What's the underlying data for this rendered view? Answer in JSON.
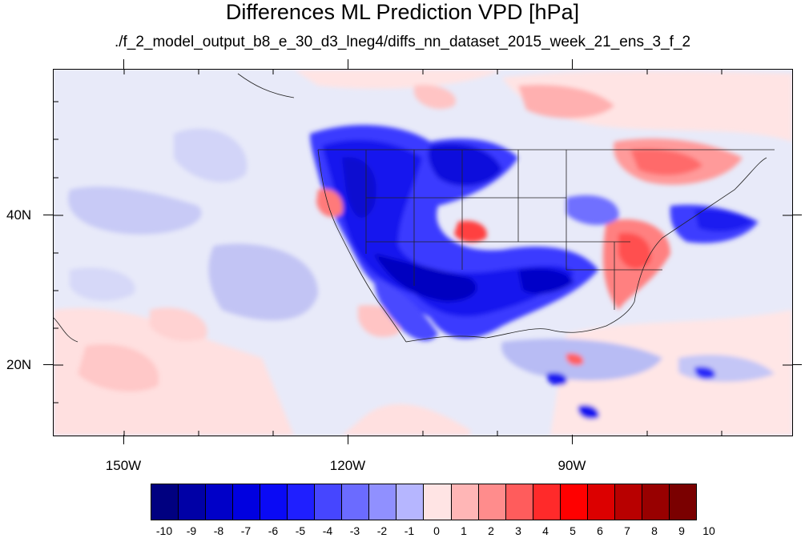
{
  "title": "Differences ML Prediction VPD [hPa]",
  "subtitle": "./f_2_model_output_b8_e_30_d3_lneg4/diffs_nn_dataset_2015_week_21_ens_3_f_2",
  "map": {
    "lon_labels": [
      "150W",
      "120W",
      "90W"
    ],
    "lat_labels": [
      "40N",
      "20N"
    ],
    "background_color": "#e8eaf9"
  },
  "colorbar": {
    "labels": [
      "-10",
      "-9",
      "-8",
      "-7",
      "-6",
      "-5",
      "-4",
      "-3",
      "-2",
      "-1",
      "0",
      "1",
      "2",
      "3",
      "4",
      "5",
      "6",
      "7",
      "8",
      "9",
      "10"
    ],
    "colors": [
      "#000080",
      "#0000a6",
      "#0000c8",
      "#0000e0",
      "#0a0af5",
      "#1f1fff",
      "#4646ff",
      "#6b6bff",
      "#9090ff",
      "#b6b6ff",
      "#e4e6f8",
      "#ffe4e4",
      "#ffb6b6",
      "#ff8c8c",
      "#ff5c5c",
      "#ff2a2a",
      "#ff0000",
      "#dc0000",
      "#b80000",
      "#980000",
      "#7a0000"
    ]
  }
}
